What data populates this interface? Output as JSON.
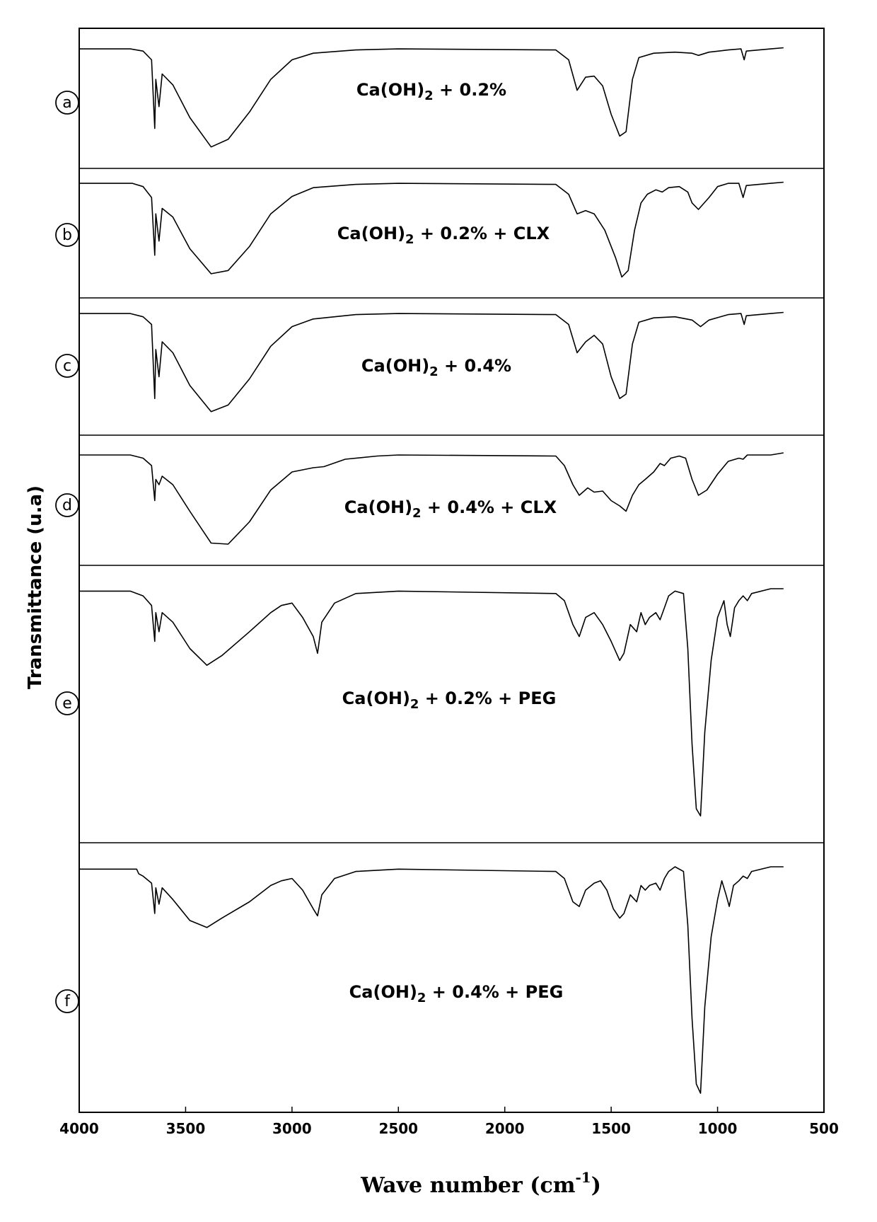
{
  "chart_data": {
    "type": "line",
    "xlabel_main": "Wave number (cm",
    "xlabel_sup": "-1",
    "xlabel_close": ")",
    "ylabel": "Transmittance (u.a)",
    "xlim": [
      4000,
      500
    ],
    "x_ticks": [
      4000,
      3500,
      3000,
      2500,
      2000,
      1500,
      1000,
      500
    ],
    "colors": {
      "line": "#000000",
      "frame": "#000000"
    },
    "series": [
      {
        "letter": "a",
        "label_pre": "Ca(OH)",
        "label_sub": "2",
        "label_post": " + 0.2%",
        "points": [
          [
            4000,
            0.02
          ],
          [
            3760,
            0.02
          ],
          [
            3700,
            0.04
          ],
          [
            3660,
            0.12
          ],
          [
            3645,
            0.75
          ],
          [
            3640,
            0.3
          ],
          [
            3625,
            0.55
          ],
          [
            3610,
            0.25
          ],
          [
            3560,
            0.35
          ],
          [
            3480,
            0.65
          ],
          [
            3380,
            0.92
          ],
          [
            3300,
            0.85
          ],
          [
            3200,
            0.6
          ],
          [
            3100,
            0.3
          ],
          [
            3000,
            0.12
          ],
          [
            2900,
            0.06
          ],
          [
            2700,
            0.03
          ],
          [
            2500,
            0.02
          ],
          [
            1760,
            0.03
          ],
          [
            1700,
            0.12
          ],
          [
            1660,
            0.4
          ],
          [
            1620,
            0.28
          ],
          [
            1580,
            0.27
          ],
          [
            1540,
            0.36
          ],
          [
            1500,
            0.62
          ],
          [
            1460,
            0.82
          ],
          [
            1430,
            0.78
          ],
          [
            1400,
            0.3
          ],
          [
            1370,
            0.1
          ],
          [
            1300,
            0.06
          ],
          [
            1200,
            0.05
          ],
          [
            1120,
            0.06
          ],
          [
            1090,
            0.08
          ],
          [
            1040,
            0.05
          ],
          [
            950,
            0.03
          ],
          [
            890,
            0.02
          ],
          [
            875,
            0.12
          ],
          [
            865,
            0.04
          ],
          [
            750,
            0.02
          ],
          [
            690,
            0.01
          ]
        ]
      },
      {
        "letter": "b",
        "label_pre": "Ca(OH)",
        "label_sub": "2",
        "label_post": " + 0.2% + CLX",
        "points": [
          [
            4000,
            0.02
          ],
          [
            3750,
            0.02
          ],
          [
            3700,
            0.05
          ],
          [
            3660,
            0.15
          ],
          [
            3645,
            0.68
          ],
          [
            3640,
            0.3
          ],
          [
            3625,
            0.55
          ],
          [
            3610,
            0.25
          ],
          [
            3560,
            0.33
          ],
          [
            3480,
            0.62
          ],
          [
            3380,
            0.85
          ],
          [
            3300,
            0.82
          ],
          [
            3200,
            0.6
          ],
          [
            3100,
            0.3
          ],
          [
            3000,
            0.14
          ],
          [
            2900,
            0.06
          ],
          [
            2700,
            0.03
          ],
          [
            2500,
            0.02
          ],
          [
            1760,
            0.03
          ],
          [
            1700,
            0.12
          ],
          [
            1660,
            0.3
          ],
          [
            1620,
            0.27
          ],
          [
            1580,
            0.3
          ],
          [
            1530,
            0.45
          ],
          [
            1480,
            0.7
          ],
          [
            1450,
            0.88
          ],
          [
            1420,
            0.82
          ],
          [
            1390,
            0.45
          ],
          [
            1360,
            0.2
          ],
          [
            1330,
            0.12
          ],
          [
            1290,
            0.08
          ],
          [
            1260,
            0.1
          ],
          [
            1230,
            0.06
          ],
          [
            1180,
            0.05
          ],
          [
            1140,
            0.1
          ],
          [
            1120,
            0.2
          ],
          [
            1090,
            0.26
          ],
          [
            1040,
            0.15
          ],
          [
            1000,
            0.05
          ],
          [
            950,
            0.02
          ],
          [
            900,
            0.02
          ],
          [
            880,
            0.15
          ],
          [
            865,
            0.04
          ],
          [
            750,
            0.02
          ],
          [
            690,
            0.01
          ]
        ]
      },
      {
        "letter": "c",
        "label_pre": "Ca(OH)",
        "label_sub": "2",
        "label_post": " + 0.4%",
        "points": [
          [
            4000,
            0.02
          ],
          [
            3760,
            0.02
          ],
          [
            3700,
            0.05
          ],
          [
            3660,
            0.12
          ],
          [
            3645,
            0.8
          ],
          [
            3640,
            0.35
          ],
          [
            3625,
            0.6
          ],
          [
            3610,
            0.28
          ],
          [
            3560,
            0.38
          ],
          [
            3480,
            0.68
          ],
          [
            3380,
            0.92
          ],
          [
            3300,
            0.86
          ],
          [
            3200,
            0.62
          ],
          [
            3100,
            0.32
          ],
          [
            3000,
            0.14
          ],
          [
            2900,
            0.07
          ],
          [
            2700,
            0.03
          ],
          [
            2500,
            0.02
          ],
          [
            1760,
            0.03
          ],
          [
            1700,
            0.12
          ],
          [
            1660,
            0.38
          ],
          [
            1620,
            0.28
          ],
          [
            1580,
            0.22
          ],
          [
            1540,
            0.3
          ],
          [
            1500,
            0.6
          ],
          [
            1460,
            0.8
          ],
          [
            1430,
            0.76
          ],
          [
            1400,
            0.3
          ],
          [
            1370,
            0.1
          ],
          [
            1300,
            0.06
          ],
          [
            1200,
            0.05
          ],
          [
            1120,
            0.08
          ],
          [
            1080,
            0.14
          ],
          [
            1040,
            0.08
          ],
          [
            950,
            0.03
          ],
          [
            890,
            0.02
          ],
          [
            875,
            0.12
          ],
          [
            865,
            0.04
          ],
          [
            750,
            0.02
          ],
          [
            690,
            0.01
          ]
        ]
      },
      {
        "letter": "d",
        "label_pre": "Ca(OH)",
        "label_sub": "2",
        "label_post": " + 0.4% + CLX",
        "points": [
          [
            4000,
            0.02
          ],
          [
            3760,
            0.02
          ],
          [
            3700,
            0.05
          ],
          [
            3660,
            0.12
          ],
          [
            3645,
            0.45
          ],
          [
            3640,
            0.25
          ],
          [
            3625,
            0.3
          ],
          [
            3610,
            0.22
          ],
          [
            3560,
            0.3
          ],
          [
            3480,
            0.55
          ],
          [
            3380,
            0.85
          ],
          [
            3300,
            0.86
          ],
          [
            3200,
            0.65
          ],
          [
            3100,
            0.35
          ],
          [
            3000,
            0.18
          ],
          [
            2900,
            0.14
          ],
          [
            2850,
            0.13
          ],
          [
            2750,
            0.06
          ],
          [
            2600,
            0.03
          ],
          [
            2500,
            0.02
          ],
          [
            1760,
            0.03
          ],
          [
            1720,
            0.12
          ],
          [
            1680,
            0.3
          ],
          [
            1650,
            0.4
          ],
          [
            1610,
            0.33
          ],
          [
            1580,
            0.37
          ],
          [
            1540,
            0.36
          ],
          [
            1500,
            0.45
          ],
          [
            1460,
            0.5
          ],
          [
            1430,
            0.55
          ],
          [
            1400,
            0.4
          ],
          [
            1370,
            0.3
          ],
          [
            1340,
            0.25
          ],
          [
            1300,
            0.18
          ],
          [
            1270,
            0.1
          ],
          [
            1250,
            0.12
          ],
          [
            1220,
            0.05
          ],
          [
            1180,
            0.03
          ],
          [
            1150,
            0.05
          ],
          [
            1120,
            0.25
          ],
          [
            1090,
            0.4
          ],
          [
            1050,
            0.35
          ],
          [
            1000,
            0.2
          ],
          [
            950,
            0.08
          ],
          [
            900,
            0.05
          ],
          [
            880,
            0.06
          ],
          [
            860,
            0.02
          ],
          [
            750,
            0.02
          ],
          [
            690,
            0.0
          ]
        ]
      },
      {
        "letter": "e",
        "label_pre": "Ca(OH)",
        "label_sub": "2",
        "label_post": " + 0.2% + PEG",
        "points": [
          [
            4000,
            0.01
          ],
          [
            3760,
            0.01
          ],
          [
            3700,
            0.03
          ],
          [
            3660,
            0.07
          ],
          [
            3645,
            0.22
          ],
          [
            3640,
            0.1
          ],
          [
            3625,
            0.18
          ],
          [
            3610,
            0.1
          ],
          [
            3560,
            0.14
          ],
          [
            3480,
            0.25
          ],
          [
            3400,
            0.32
          ],
          [
            3330,
            0.28
          ],
          [
            3200,
            0.18
          ],
          [
            3100,
            0.1
          ],
          [
            3050,
            0.07
          ],
          [
            3000,
            0.06
          ],
          [
            2950,
            0.12
          ],
          [
            2900,
            0.2
          ],
          [
            2880,
            0.27
          ],
          [
            2860,
            0.14
          ],
          [
            2800,
            0.06
          ],
          [
            2700,
            0.02
          ],
          [
            2500,
            0.01
          ],
          [
            1760,
            0.02
          ],
          [
            1720,
            0.05
          ],
          [
            1680,
            0.15
          ],
          [
            1650,
            0.2
          ],
          [
            1620,
            0.12
          ],
          [
            1580,
            0.1
          ],
          [
            1540,
            0.15
          ],
          [
            1500,
            0.22
          ],
          [
            1460,
            0.3
          ],
          [
            1440,
            0.27
          ],
          [
            1410,
            0.15
          ],
          [
            1380,
            0.18
          ],
          [
            1360,
            0.1
          ],
          [
            1340,
            0.15
          ],
          [
            1320,
            0.12
          ],
          [
            1290,
            0.1
          ],
          [
            1270,
            0.13
          ],
          [
            1250,
            0.08
          ],
          [
            1230,
            0.03
          ],
          [
            1200,
            0.01
          ],
          [
            1160,
            0.02
          ],
          [
            1140,
            0.25
          ],
          [
            1120,
            0.65
          ],
          [
            1100,
            0.92
          ],
          [
            1080,
            0.95
          ],
          [
            1060,
            0.6
          ],
          [
            1030,
            0.3
          ],
          [
            1000,
            0.12
          ],
          [
            970,
            0.05
          ],
          [
            955,
            0.15
          ],
          [
            940,
            0.2
          ],
          [
            920,
            0.08
          ],
          [
            900,
            0.05
          ],
          [
            880,
            0.03
          ],
          [
            860,
            0.05
          ],
          [
            840,
            0.02
          ],
          [
            750,
            0.0
          ],
          [
            690,
            0.0
          ]
        ]
      },
      {
        "letter": "f",
        "label_pre": "Ca(OH)",
        "label_sub": "2",
        "label_post": " + 0.4% + PEG",
        "points": [
          [
            4000,
            0.01
          ],
          [
            3730,
            0.01
          ],
          [
            3720,
            0.03
          ],
          [
            3700,
            0.04
          ],
          [
            3660,
            0.07
          ],
          [
            3645,
            0.2
          ],
          [
            3640,
            0.09
          ],
          [
            3625,
            0.16
          ],
          [
            3610,
            0.09
          ],
          [
            3560,
            0.14
          ],
          [
            3480,
            0.23
          ],
          [
            3400,
            0.26
          ],
          [
            3330,
            0.22
          ],
          [
            3200,
            0.15
          ],
          [
            3100,
            0.08
          ],
          [
            3050,
            0.06
          ],
          [
            3000,
            0.05
          ],
          [
            2950,
            0.1
          ],
          [
            2900,
            0.18
          ],
          [
            2880,
            0.21
          ],
          [
            2860,
            0.12
          ],
          [
            2800,
            0.05
          ],
          [
            2700,
            0.02
          ],
          [
            2500,
            0.01
          ],
          [
            1760,
            0.02
          ],
          [
            1720,
            0.05
          ],
          [
            1680,
            0.15
          ],
          [
            1650,
            0.17
          ],
          [
            1620,
            0.1
          ],
          [
            1580,
            0.07
          ],
          [
            1550,
            0.06
          ],
          [
            1520,
            0.1
          ],
          [
            1490,
            0.18
          ],
          [
            1460,
            0.22
          ],
          [
            1440,
            0.2
          ],
          [
            1410,
            0.12
          ],
          [
            1380,
            0.15
          ],
          [
            1360,
            0.08
          ],
          [
            1340,
            0.1
          ],
          [
            1320,
            0.08
          ],
          [
            1290,
            0.07
          ],
          [
            1270,
            0.1
          ],
          [
            1250,
            0.05
          ],
          [
            1230,
            0.02
          ],
          [
            1200,
            0.0
          ],
          [
            1160,
            0.02
          ],
          [
            1140,
            0.25
          ],
          [
            1120,
            0.65
          ],
          [
            1100,
            0.93
          ],
          [
            1080,
            0.97
          ],
          [
            1060,
            0.6
          ],
          [
            1030,
            0.3
          ],
          [
            1000,
            0.14
          ],
          [
            980,
            0.06
          ],
          [
            960,
            0.12
          ],
          [
            945,
            0.17
          ],
          [
            925,
            0.08
          ],
          [
            900,
            0.06
          ],
          [
            880,
            0.04
          ],
          [
            860,
            0.05
          ],
          [
            840,
            0.02
          ],
          [
            750,
            0.0
          ],
          [
            690,
            0.0
          ]
        ]
      }
    ]
  }
}
